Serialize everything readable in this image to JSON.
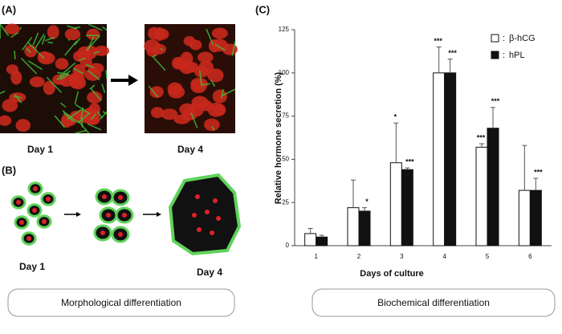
{
  "panels": {
    "a": {
      "label": "(A)",
      "captions": [
        "Day 1",
        "Day 4"
      ]
    },
    "b": {
      "label": "(B)",
      "captions": [
        "Day 1",
        "Day 4"
      ],
      "footer": "Morphological differentiation"
    },
    "c": {
      "label": "(C)",
      "footer": "Biochemical differentiation"
    }
  },
  "chart_data": {
    "type": "bar",
    "y_label": "Relative hormone secretion   (%)",
    "x_label": "Days of culture",
    "categories": [
      "1",
      "2",
      "3",
      "4",
      "5",
      "6"
    ],
    "series": [
      {
        "name": "β-hCG",
        "color": "#ffffff",
        "values": [
          7,
          22,
          48,
          100,
          57,
          32
        ],
        "errors": [
          3,
          16,
          23,
          15,
          2,
          26
        ],
        "significance": [
          null,
          null,
          "*",
          "***",
          "***",
          null
        ]
      },
      {
        "name": "hPL",
        "color": "#111111",
        "values": [
          5,
          20,
          44,
          100,
          68,
          32
        ],
        "errors": [
          1,
          2,
          1,
          8,
          12,
          7
        ],
        "significance": [
          null,
          "*",
          "***",
          "***",
          "***",
          "***"
        ]
      }
    ],
    "legend_separator": ":",
    "legend": "upper right",
    "ylim": [
      0,
      125
    ],
    "yticks": [
      0,
      25,
      50,
      75,
      100,
      125
    ]
  }
}
